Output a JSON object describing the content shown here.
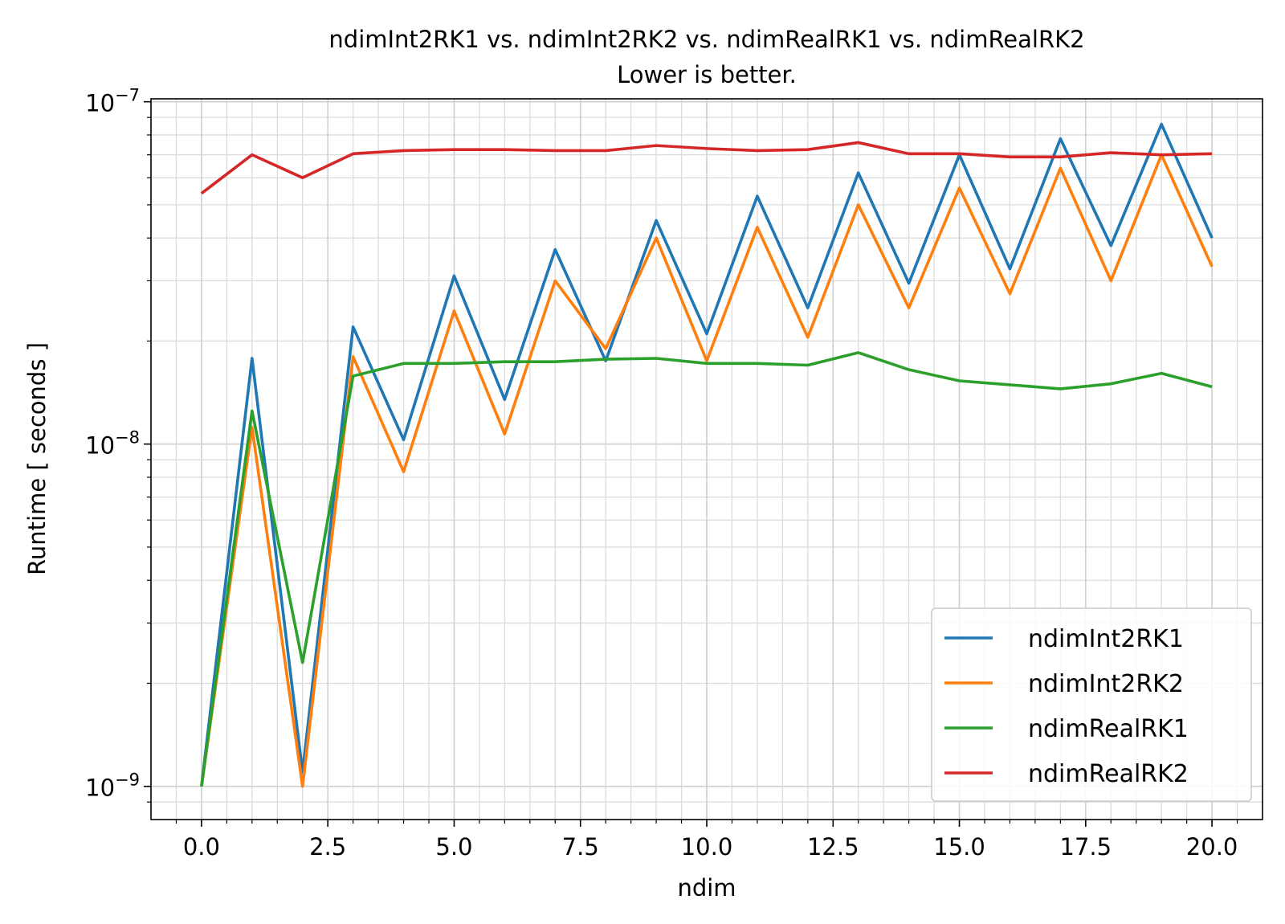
{
  "chart_data": {
    "type": "line",
    "title": "ndimInt2RK1 vs. ndimInt2RK2 vs. ndimRealRK1 vs. ndimRealRK2",
    "subtitle": "Lower is better.",
    "xlabel": "ndim",
    "ylabel": "Runtime [ seconds ]",
    "xlim": [
      -1,
      21
    ],
    "ylim": [
      8e-10,
      1.02e-07
    ],
    "yscale": "log",
    "grid": true,
    "legend_position": "lower-right",
    "x_ticks": [
      0,
      2.5,
      5,
      7.5,
      10,
      12.5,
      15,
      17.5,
      20
    ],
    "x_tick_labels": [
      "0.0",
      "2.5",
      "5.0",
      "7.5",
      "10.0",
      "12.5",
      "15.0",
      "17.5",
      "20.0"
    ],
    "y_ticks": [
      {
        "value": 1e-09,
        "base": "10",
        "exp": "−9"
      },
      {
        "value": 1e-08,
        "base": "10",
        "exp": "−8"
      },
      {
        "value": 1e-07,
        "base": "10",
        "exp": "−7"
      }
    ],
    "x": [
      0,
      1,
      2,
      3,
      4,
      5,
      6,
      7,
      8,
      9,
      10,
      11,
      12,
      13,
      14,
      15,
      16,
      17,
      18,
      19,
      20
    ],
    "series": [
      {
        "name": "ndimInt2RK1",
        "color": "#1f77b4",
        "values": [
          1e-09,
          1.78e-08,
          1.1e-09,
          2.2e-08,
          1.03e-08,
          3.1e-08,
          1.35e-08,
          3.7e-08,
          1.75e-08,
          4.5e-08,
          2.1e-08,
          5.3e-08,
          2.5e-08,
          6.2e-08,
          2.95e-08,
          7e-08,
          3.25e-08,
          7.8e-08,
          3.8e-08,
          8.6e-08,
          4e-08
        ]
      },
      {
        "name": "ndimInt2RK2",
        "color": "#ff7f0e",
        "values": [
          1e-09,
          1.12e-08,
          1e-09,
          1.8e-08,
          8.3e-09,
          2.45e-08,
          1.07e-08,
          3e-08,
          1.9e-08,
          4e-08,
          1.75e-08,
          4.3e-08,
          2.05e-08,
          5e-08,
          2.5e-08,
          5.6e-08,
          2.75e-08,
          6.4e-08,
          3e-08,
          7e-08,
          3.3e-08
        ]
      },
      {
        "name": "ndimRealRK1",
        "color": "#2ca02c",
        "values": [
          1e-09,
          1.25e-08,
          2.3e-09,
          1.58e-08,
          1.72e-08,
          1.72e-08,
          1.74e-08,
          1.74e-08,
          1.77e-08,
          1.78e-08,
          1.72e-08,
          1.72e-08,
          1.7e-08,
          1.85e-08,
          1.65e-08,
          1.53e-08,
          1.49e-08,
          1.45e-08,
          1.5e-08,
          1.61e-08,
          1.47e-08
        ]
      },
      {
        "name": "ndimRealRK2",
        "color": "#d62728",
        "values": [
          5.4e-08,
          7e-08,
          6e-08,
          7.05e-08,
          7.2e-08,
          7.25e-08,
          7.25e-08,
          7.2e-08,
          7.2e-08,
          7.45e-08,
          7.3e-08,
          7.2e-08,
          7.25e-08,
          7.6e-08,
          7.05e-08,
          7.05e-08,
          6.9e-08,
          6.9e-08,
          7.1e-08,
          7e-08,
          7.05e-08
        ]
      }
    ]
  }
}
